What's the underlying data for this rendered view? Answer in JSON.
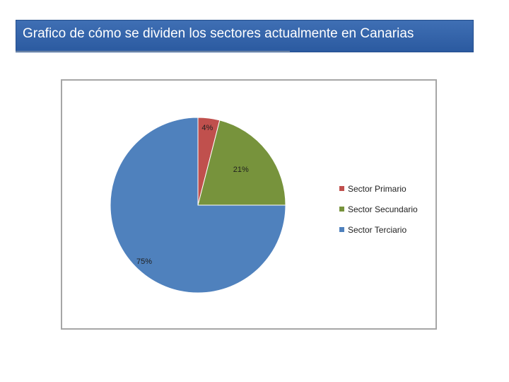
{
  "title_bar": {
    "text": "Grafico de cómo se dividen los sectores actualmente en Canarias"
  },
  "chart_data": {
    "type": "pie",
    "categories": [
      "Sector Primario",
      "Sector Secundario",
      "Sector Terciario"
    ],
    "values": [
      4,
      21,
      75
    ],
    "data_labels": [
      "4%",
      "21%",
      "75%"
    ],
    "colors": [
      "#c0504d",
      "#77933c",
      "#4f81bd"
    ],
    "start_angle": "12 o'clock",
    "direction": "clockwise",
    "legend": {
      "placement": "right",
      "entries": [
        "Sector Primario",
        "Sector Secundario",
        "Sector Terciario"
      ]
    }
  }
}
